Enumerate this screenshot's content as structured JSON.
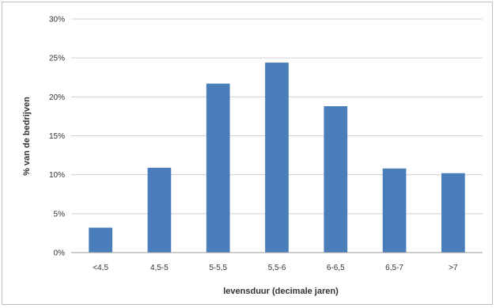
{
  "chart_data": {
    "type": "bar",
    "title": "",
    "xlabel": "levensduur (decimale jaren)",
    "ylabel": "% van de bedrijven",
    "categories": [
      "<4,5",
      "4,5-5",
      "5-5,5",
      "5,5-6",
      "6-6,5",
      "6,5-7",
      ">7"
    ],
    "values": [
      3.2,
      10.9,
      21.7,
      24.4,
      18.8,
      10.8,
      10.2
    ],
    "ylim": [
      0,
      30
    ],
    "yticks": [
      {
        "value": 0,
        "label": "0%"
      },
      {
        "value": 5,
        "label": "5%"
      },
      {
        "value": 10,
        "label": "10%"
      },
      {
        "value": 15,
        "label": "15%"
      },
      {
        "value": 20,
        "label": "20%"
      },
      {
        "value": 25,
        "label": "25%"
      },
      {
        "value": 30,
        "label": "30%"
      }
    ],
    "grid": true,
    "legend": "none",
    "bar_color": "#4a7ebb"
  }
}
